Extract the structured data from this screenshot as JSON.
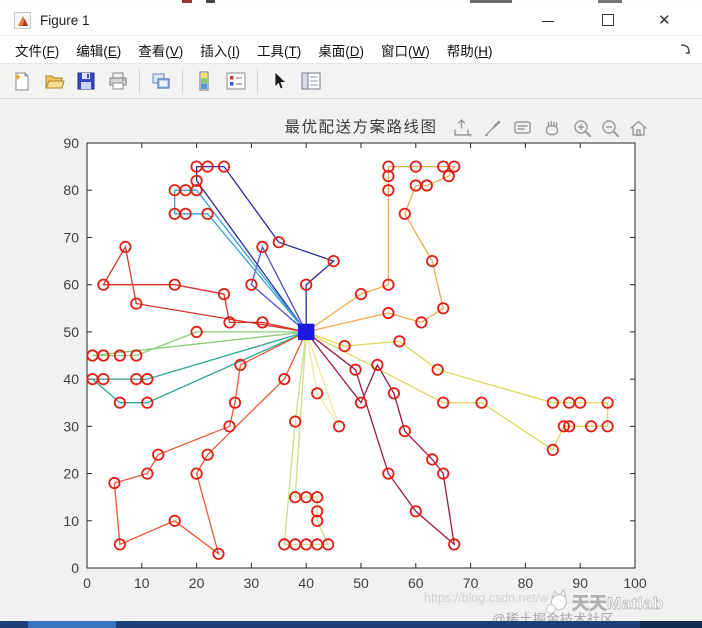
{
  "window": {
    "title": "Figure 1"
  },
  "menu": {
    "items": [
      {
        "label": "文件",
        "key": "F"
      },
      {
        "label": "编辑",
        "key": "E"
      },
      {
        "label": "查看",
        "key": "V"
      },
      {
        "label": "插入",
        "key": "I"
      },
      {
        "label": "工具",
        "key": "T"
      },
      {
        "label": "桌面",
        "key": "D"
      },
      {
        "label": "窗口",
        "key": "W"
      },
      {
        "label": "帮助",
        "key": "H"
      }
    ]
  },
  "toolbar": {
    "buttons": [
      "new-figure",
      "open-file",
      "save-figure",
      "print-figure",
      "link-plot",
      "insert-colorbar",
      "insert-legend",
      "edit-plot",
      "property-inspector"
    ]
  },
  "figure": {
    "title": "最优配送方案路线图",
    "axes_toolbar": [
      "export",
      "brush",
      "datatip",
      "pan",
      "zoom-in",
      "zoom-out",
      "home"
    ]
  },
  "watermarks": {
    "url": "https://blog.csdn.net/w",
    "brand": "天天Matlab",
    "community": "@稀土掘金技术社区"
  },
  "chart_data": {
    "type": "line",
    "title": "最优配送方案路线图",
    "xlabel": "",
    "ylabel": "",
    "xlim": [
      0,
      100
    ],
    "ylim": [
      0,
      90
    ],
    "xticks": [
      0,
      10,
      20,
      30,
      40,
      50,
      60,
      70,
      80,
      90,
      100
    ],
    "yticks": [
      0,
      10,
      20,
      30,
      40,
      50,
      60,
      70,
      80,
      90
    ],
    "grid": false,
    "legend": "none",
    "depot": {
      "x": 40,
      "y": 50,
      "marker": "filled-square",
      "color": "#1a1ae0"
    },
    "customer_marker": {
      "shape": "open-circle",
      "color": "#e01e14"
    },
    "routes": [
      {
        "name": "route-1",
        "color": "#2c2c9e",
        "points": [
          [
            40,
            50
          ],
          [
            40,
            60
          ],
          [
            45,
            65
          ],
          [
            35,
            69
          ],
          [
            25,
            85
          ],
          [
            22,
            85
          ],
          [
            20,
            85
          ],
          [
            20,
            82
          ],
          [
            40,
            50
          ]
        ]
      },
      {
        "name": "route-2",
        "color": "#4f4cc3",
        "points": [
          [
            40,
            50
          ],
          [
            32,
            68
          ],
          [
            30,
            60
          ],
          [
            40,
            50
          ]
        ]
      },
      {
        "name": "route-3",
        "color": "#3aa2d4",
        "points": [
          [
            40,
            50
          ],
          [
            20,
            80
          ],
          [
            18,
            80
          ],
          [
            16,
            80
          ],
          [
            16,
            75
          ],
          [
            18,
            75
          ],
          [
            22,
            75
          ],
          [
            40,
            50
          ]
        ]
      },
      {
        "name": "route-4",
        "color": "#2ea28f",
        "points": [
          [
            40,
            50
          ],
          [
            11,
            40
          ],
          [
            9,
            40
          ],
          [
            3,
            40
          ],
          [
            1,
            40
          ],
          [
            6,
            35
          ],
          [
            11,
            35
          ],
          [
            40,
            50
          ]
        ]
      },
      {
        "name": "route-5",
        "color": "#8ccc7a",
        "points": [
          [
            40,
            50
          ],
          [
            20,
            50
          ],
          [
            9,
            45
          ],
          [
            6,
            45
          ],
          [
            3,
            45
          ],
          [
            1,
            45
          ],
          [
            40,
            50
          ]
        ]
      },
      {
        "name": "route-6",
        "color": "#ccdf8a",
        "points": [
          [
            40,
            50
          ],
          [
            38,
            31
          ],
          [
            36,
            5
          ],
          [
            38,
            5
          ],
          [
            40,
            5
          ],
          [
            42,
            5
          ],
          [
            44,
            5
          ],
          [
            42,
            10
          ],
          [
            42,
            12
          ],
          [
            42,
            15
          ],
          [
            40,
            15
          ],
          [
            38,
            15
          ],
          [
            40,
            50
          ]
        ]
      },
      {
        "name": "route-7",
        "color": "#ece9a0",
        "points": [
          [
            40,
            50
          ],
          [
            42,
            37
          ],
          [
            46,
            30
          ],
          [
            40,
            50
          ]
        ]
      },
      {
        "name": "route-8",
        "color": "#e3d55f",
        "points": [
          [
            40,
            50
          ],
          [
            47,
            47
          ],
          [
            57,
            48
          ],
          [
            64,
            42
          ],
          [
            85,
            35
          ],
          [
            88,
            35
          ],
          [
            90,
            35
          ],
          [
            95,
            35
          ],
          [
            95,
            30
          ],
          [
            92,
            30
          ],
          [
            88,
            30
          ],
          [
            87,
            30
          ],
          [
            85,
            25
          ],
          [
            72,
            35
          ],
          [
            65,
            35
          ],
          [
            40,
            50
          ]
        ]
      },
      {
        "name": "route-9",
        "color": "#f3a950",
        "points": [
          [
            40,
            50
          ],
          [
            50,
            58
          ],
          [
            55,
            60
          ],
          [
            55,
            80
          ],
          [
            55,
            83
          ],
          [
            55,
            85
          ],
          [
            60,
            85
          ],
          [
            65,
            85
          ],
          [
            67,
            85
          ],
          [
            66,
            83
          ],
          [
            62,
            81
          ],
          [
            60,
            81
          ],
          [
            58,
            75
          ],
          [
            63,
            65
          ],
          [
            65,
            55
          ],
          [
            61,
            52
          ],
          [
            55,
            54
          ],
          [
            40,
            50
          ]
        ]
      },
      {
        "name": "route-10",
        "color": "#e85a35",
        "points": [
          [
            40,
            50
          ],
          [
            36,
            40
          ],
          [
            22,
            24
          ],
          [
            20,
            20
          ],
          [
            24,
            3
          ],
          [
            16,
            10
          ],
          [
            6,
            5
          ],
          [
            5,
            18
          ],
          [
            11,
            20
          ],
          [
            13,
            24
          ],
          [
            26,
            30
          ],
          [
            27,
            35
          ],
          [
            28,
            43
          ],
          [
            40,
            50
          ]
        ]
      },
      {
        "name": "route-11",
        "color": "#d6332b",
        "points": [
          [
            40,
            50
          ],
          [
            32,
            52
          ],
          [
            26,
            52
          ],
          [
            25,
            58
          ],
          [
            16,
            60
          ],
          [
            3,
            60
          ],
          [
            7,
            68
          ],
          [
            9,
            56
          ],
          [
            40,
            50
          ]
        ]
      },
      {
        "name": "route-12",
        "color": "#991a4e",
        "points": [
          [
            40,
            50
          ],
          [
            49,
            42
          ],
          [
            55,
            20
          ],
          [
            60,
            12
          ],
          [
            67,
            5
          ],
          [
            65,
            20
          ],
          [
            63,
            23
          ],
          [
            58,
            29
          ],
          [
            56,
            37
          ],
          [
            53,
            43
          ],
          [
            50,
            35
          ],
          [
            40,
            50
          ]
        ]
      }
    ]
  }
}
